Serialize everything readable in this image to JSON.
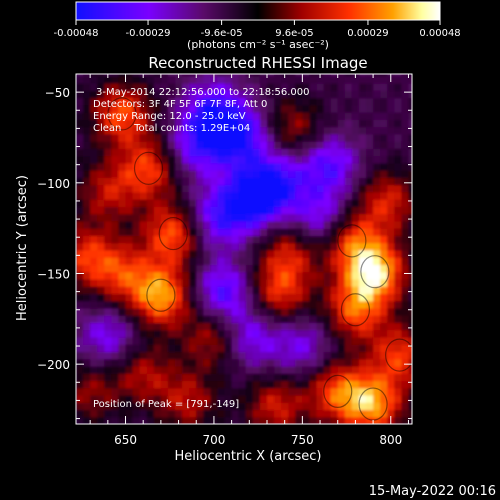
{
  "chart_data": {
    "type": "heatmap",
    "title": "Reconstructed RHESSI Image",
    "xlabel": "Heliocentric X (arcsec)",
    "ylabel": "Heliocentric Y (arcsec)",
    "xlim": [
      622,
      812
    ],
    "ylim": [
      -233,
      -40
    ],
    "x_ticks": [
      650,
      700,
      750,
      800
    ],
    "y_ticks": [
      -50,
      -100,
      -150,
      -200
    ],
    "colorbar": {
      "ticks": [
        "-0.00048",
        "-0.00029",
        "-9.6e-05",
        "9.6e-05",
        "0.00029",
        "0.00048"
      ],
      "tick_values": [
        -0.00048,
        -0.00029,
        -9.6e-05,
        9.6e-05,
        0.00029,
        0.00048
      ],
      "range": [
        -0.00048,
        0.00048
      ],
      "unit_label": "(photons cm⁻² s⁻¹ asec⁻²)",
      "colors": [
        "#1010ff",
        "#7a00ff",
        "#5a0a6a",
        "#000000",
        "#a00000",
        "#ff3000",
        "#ffa000",
        "#ffffa0",
        "#ffffff"
      ]
    },
    "annotations": [
      "3-May-2014 22:12:56.000 to 22:18:56.000",
      "Detectors: 3F 4F 5F 6F 7F 8F, Att 0",
      "Energy Range: 12.0 - 25.0 keV",
      "Clean    Total counts: 1.29E+04"
    ],
    "peak_label": "Position of Peak = [791,-149]",
    "peak": [
      791,
      -149
    ],
    "hotspots": [
      {
        "x": 648,
        "y": -62,
        "v": 0.00034
      },
      {
        "x": 663,
        "y": -92,
        "v": 0.00031
      },
      {
        "x": 677,
        "y": -128,
        "v": 0.00036
      },
      {
        "x": 670,
        "y": -162,
        "v": 0.00043
      },
      {
        "x": 648,
        "y": -150,
        "v": 0.00026
      },
      {
        "x": 628,
        "y": -140,
        "v": 0.00028
      },
      {
        "x": 640,
        "y": -105,
        "v": 0.00022
      },
      {
        "x": 700,
        "y": -185,
        "v": 0.00024
      },
      {
        "x": 737,
        "y": -160,
        "v": 0.00029
      },
      {
        "x": 743,
        "y": -138,
        "v": 0.00024
      },
      {
        "x": 735,
        "y": -223,
        "v": 0.00025
      },
      {
        "x": 770,
        "y": -215,
        "v": 0.00032
      },
      {
        "x": 790,
        "y": -222,
        "v": 0.0004
      },
      {
        "x": 805,
        "y": -195,
        "v": 0.0003
      },
      {
        "x": 791,
        "y": -149,
        "v": 0.00048
      },
      {
        "x": 780,
        "y": -170,
        "v": 0.00033
      },
      {
        "x": 798,
        "y": -110,
        "v": 0.00026
      },
      {
        "x": 778,
        "y": -132,
        "v": 0.0003
      },
      {
        "x": 745,
        "y": -70,
        "v": 0.0002
      },
      {
        "x": 685,
        "y": -220,
        "v": 0.00022
      },
      {
        "x": 630,
        "y": -215,
        "v": 0.00018
      },
      {
        "x": 660,
        "y": -205,
        "v": 0.00021
      }
    ],
    "coldspots": [
      {
        "x": 700,
        "y": -60,
        "v": -0.0003
      },
      {
        "x": 715,
        "y": -75,
        "v": -0.00034
      },
      {
        "x": 690,
        "y": -80,
        "v": -0.00026
      },
      {
        "x": 720,
        "y": -110,
        "v": -0.00036
      },
      {
        "x": 735,
        "y": -100,
        "v": -0.00032
      },
      {
        "x": 700,
        "y": -120,
        "v": -0.00026
      },
      {
        "x": 765,
        "y": -90,
        "v": -0.00028
      },
      {
        "x": 705,
        "y": -160,
        "v": -0.0003
      },
      {
        "x": 720,
        "y": -185,
        "v": -0.00024
      },
      {
        "x": 640,
        "y": -185,
        "v": -0.00022
      },
      {
        "x": 760,
        "y": -120,
        "v": -0.00024
      },
      {
        "x": 750,
        "y": -190,
        "v": -0.0002
      }
    ]
  },
  "footer": {
    "timestamp": "15-May-2022 00:16"
  }
}
